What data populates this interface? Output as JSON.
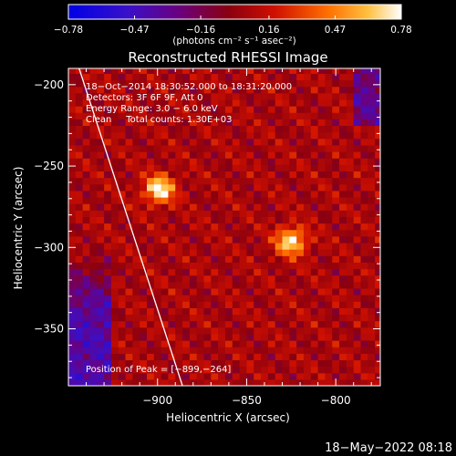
{
  "colorbar": {
    "tick_labels": [
      "−0.78",
      "−0.47",
      "−0.16",
      "0.16",
      "0.47",
      "0.78"
    ],
    "ticks": [
      -0.78,
      -0.47,
      -0.16,
      0.16,
      0.47,
      0.78
    ],
    "range": [
      -0.78,
      0.78
    ],
    "units": "(photons cm⁻² s⁻¹ asec⁻²)"
  },
  "chart_data": {
    "type": "heatmap",
    "title": "Reconstructed RHESSI Image",
    "xlabel": "Heliocentric X (arcsec)",
    "ylabel": "Heliocentric Y (arcsec)",
    "xlim": [
      -950,
      -775
    ],
    "ylim": [
      -385,
      -190
    ],
    "x_ticks": [
      -900,
      -850,
      -800
    ],
    "x_tick_labels": [
      "−900",
      "−850",
      "−800"
    ],
    "y_ticks": [
      -200,
      -250,
      -300,
      -350
    ],
    "y_tick_labels": [
      "−200",
      "−250",
      "−300",
      "−350"
    ],
    "sources": [
      {
        "x": -899,
        "y": -264,
        "peak": 0.78
      },
      {
        "x": -825,
        "y": -296,
        "peak": 0.74
      }
    ],
    "limb_line": [
      [
        -944,
        -190
      ],
      [
        -886,
        -385
      ]
    ],
    "annotations": {
      "time": "18−Oct−2014 18:30:52.000 to 18:31:20.000",
      "detectors": "Detectors: 3F 6F 9F, Att 0",
      "energy": "Energy Range: 3.0 − 6.0 keV",
      "method": "Clean     Total counts: 1.30E+03",
      "peak": "Position of Peak = [−899,−264]"
    }
  },
  "footer": {
    "timestamp": "18−May−2022 08:18"
  },
  "colors": {
    "background": "#000000",
    "foreground": "#ffffff"
  }
}
